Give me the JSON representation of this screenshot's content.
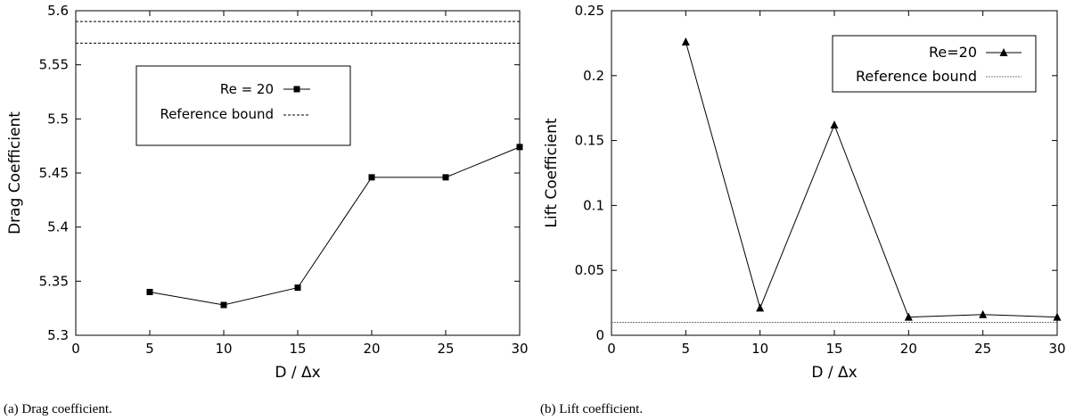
{
  "chart_data": [
    {
      "type": "line",
      "caption": "(a) Drag coefficient.",
      "xlabel": "D / Δx",
      "ylabel": "Drag Coefficient",
      "xlim": [
        0,
        30
      ],
      "ylim": [
        5.3,
        5.6
      ],
      "xticks": [
        "0",
        "5",
        "10",
        "15",
        "20",
        "25",
        "30"
      ],
      "yticks": [
        "5.3",
        "5.35",
        "5.4",
        "5.45",
        "5.5",
        "5.55",
        "5.6"
      ],
      "grid": false,
      "legend_position": "upper-left",
      "series": [
        {
          "name": "Re = 20",
          "marker": "square",
          "line": "solid",
          "x": [
            5,
            10,
            15,
            20,
            25,
            30
          ],
          "y": [
            5.34,
            5.328,
            5.344,
            5.446,
            5.446,
            5.474
          ]
        }
      ],
      "reference": {
        "name": "Reference bound",
        "line": "dashed",
        "values": [
          5.57,
          5.59
        ]
      }
    },
    {
      "type": "line",
      "caption": "(b) Lift coefficient.",
      "xlabel": "D / Δx",
      "ylabel": "Lift Coefficient",
      "xlim": [
        0,
        30
      ],
      "ylim": [
        0,
        0.25
      ],
      "xticks": [
        "0",
        "5",
        "10",
        "15",
        "20",
        "25",
        "30"
      ],
      "yticks": [
        "0",
        "0.05",
        "0.1",
        "0.15",
        "0.2",
        "0.25"
      ],
      "grid": false,
      "legend_position": "upper-right",
      "series": [
        {
          "name": "Re=20",
          "marker": "triangle",
          "line": "solid",
          "x": [
            5,
            10,
            15,
            20,
            25,
            30
          ],
          "y": [
            0.226,
            0.021,
            0.162,
            0.014,
            0.016,
            0.014
          ]
        }
      ],
      "reference": {
        "name": "Reference bound",
        "line": "dotted",
        "values": [
          0.01
        ]
      }
    }
  ]
}
